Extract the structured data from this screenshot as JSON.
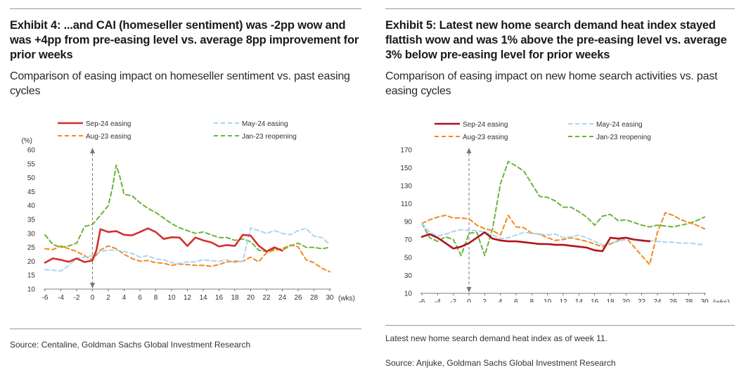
{
  "exhibits": [
    {
      "title": "Exhibit 4: ...and CAI (homeseller sentiment) was -2pp wow and was +4pp from pre-easing level vs. average 8pp improvement for prior weeks",
      "subtitle": "Comparison of easing impact on homeseller sentiment vs. past easing cycles",
      "note": "",
      "source": "Source: Centaline, Goldman Sachs Global Investment Research"
    },
    {
      "title": "Exhibit 5: Latest new home search demand heat index stayed flattish wow and was 1% above the pre-easing level vs. average 3% below pre-easing level for prior weeks",
      "subtitle": "Comparison of easing impact on new home search activities vs. past easing cycles",
      "note": "Latest new home search demand heat index as of week 11.",
      "source": "Source: Anjuke, Goldman Sachs Global Investment Research"
    }
  ],
  "chart_data": [
    {
      "type": "line",
      "title": "",
      "ylabel": "(%)",
      "xlabel": "(wks)",
      "ylim": [
        10,
        60
      ],
      "yticks": [
        10,
        15,
        20,
        25,
        30,
        35,
        40,
        45,
        50,
        55,
        60
      ],
      "xlim": [
        -6,
        30
      ],
      "xticks": [
        -6,
        -4,
        -2,
        0,
        2,
        4,
        6,
        8,
        10,
        12,
        14,
        16,
        18,
        20,
        22,
        24,
        26,
        28,
        30
      ],
      "series": [
        {
          "name": "Sep-24 easing",
          "color": "#d32f2f",
          "dash": "solid",
          "width": 2.6,
          "x": [
            -6,
            -5,
            -4,
            -3,
            -2,
            -1,
            0,
            0.5,
            1,
            2,
            3,
            4,
            5,
            6,
            7,
            8,
            9,
            10,
            11,
            12,
            13,
            14,
            15,
            16,
            17,
            18,
            19,
            20,
            21,
            22,
            23,
            24
          ],
          "y": [
            19.5,
            21,
            20.5,
            19.8,
            21,
            19.7,
            20.3,
            24,
            31.5,
            30.5,
            30.8,
            29.5,
            29.3,
            30.5,
            31.8,
            30.5,
            28,
            28.6,
            28.5,
            25.5,
            28.5,
            27.5,
            26.8,
            25.3,
            25.8,
            25.5,
            29.5,
            29.2,
            25.6,
            23.5,
            25,
            23.8
          ]
        },
        {
          "name": "May-24 easing",
          "color": "#a9d5f0",
          "dash": "6,4",
          "width": 2,
          "x": [
            -6,
            -5,
            -4,
            -3,
            -2,
            -1,
            0,
            1,
            2,
            3,
            4,
            5,
            6,
            7,
            8,
            9,
            10,
            11,
            12,
            13,
            14,
            15,
            16,
            17,
            18,
            19,
            20,
            21,
            22,
            23,
            24,
            25,
            26,
            27,
            28,
            29,
            30
          ],
          "y": [
            17,
            16.8,
            16.5,
            18.5,
            21,
            21.5,
            22,
            23.5,
            24,
            24,
            23.5,
            22.8,
            21.5,
            22,
            20.8,
            20.5,
            19.5,
            19.2,
            19.8,
            19.8,
            20.5,
            20.2,
            20,
            20.5,
            19.5,
            20,
            32,
            31,
            30,
            31,
            30,
            29.5,
            31,
            31.8,
            29,
            28.5,
            26
          ]
        },
        {
          "name": "Aug-23 easing",
          "color": "#f28a1c",
          "dash": "6,4",
          "width": 2,
          "x": [
            -6,
            -5,
            -4,
            -3,
            -2,
            -1,
            0,
            1,
            2,
            3,
            4,
            5,
            6,
            7,
            8,
            9,
            10,
            11,
            12,
            13,
            14,
            15,
            16,
            17,
            18,
            19,
            20,
            21,
            22,
            23,
            24,
            25,
            26,
            27,
            28,
            29,
            30
          ],
          "y": [
            24.5,
            24.2,
            25.5,
            24.5,
            23.5,
            22,
            20.5,
            24,
            25.5,
            24.5,
            22.5,
            21,
            20,
            20.3,
            19.5,
            19.3,
            18.5,
            19,
            18.8,
            18.5,
            18.5,
            18.2,
            18.8,
            19.8,
            20,
            20,
            21.5,
            19.8,
            23,
            24,
            24.5,
            25.8,
            25.2,
            20.5,
            19.5,
            17.5,
            16.2
          ]
        },
        {
          "name": "Jan-23 reopening",
          "color": "#6ab43c",
          "dash": "6,4",
          "width": 2,
          "x": [
            -6,
            -5,
            -4,
            -3,
            -2,
            -1,
            0,
            1,
            2,
            2.5,
            3,
            3.5,
            4,
            5,
            6,
            7,
            8,
            9,
            10,
            11,
            12,
            13,
            14,
            15,
            16,
            17,
            18,
            19,
            20,
            21,
            22,
            23,
            24,
            25,
            26,
            27,
            28,
            29,
            30
          ],
          "y": [
            29.5,
            26,
            25,
            25.5,
            26.5,
            32.5,
            33.2,
            36.5,
            40,
            46,
            54.5,
            50,
            44,
            43.5,
            41,
            39,
            37.5,
            35.5,
            33.5,
            32,
            31,
            30,
            30.5,
            29.5,
            28.5,
            28.5,
            27.5,
            28,
            27,
            24,
            23.5,
            24.5,
            24,
            25.5,
            26.5,
            25,
            25,
            24.5,
            25
          ]
        }
      ]
    },
    {
      "type": "line",
      "title": "",
      "ylabel": "",
      "xlabel": "(wks)",
      "ylim": [
        10,
        170
      ],
      "yticks": [
        10,
        30,
        50,
        70,
        90,
        110,
        130,
        150,
        170
      ],
      "xlim": [
        -6,
        30
      ],
      "xticks": [
        -6,
        -4,
        -2,
        0,
        2,
        4,
        6,
        8,
        10,
        12,
        14,
        16,
        18,
        20,
        22,
        24,
        26,
        28,
        30
      ],
      "series": [
        {
          "name": "Sep-24 easing",
          "color": "#b3121a",
          "dash": "solid",
          "width": 2.6,
          "x": [
            -6,
            -5,
            -4,
            -3,
            -2,
            -1,
            0,
            1,
            2,
            3,
            4,
            5,
            6,
            7,
            8,
            9,
            10,
            11,
            12,
            13,
            14,
            15,
            16,
            17,
            18,
            19,
            20,
            21,
            22,
            23
          ],
          "y": [
            73,
            76,
            72,
            66,
            60,
            62,
            66,
            72,
            78,
            71,
            69,
            68,
            68,
            67,
            66,
            65,
            65,
            64,
            64,
            63,
            62,
            61,
            58,
            57,
            72,
            71,
            72,
            70,
            69,
            68
          ]
        },
        {
          "name": "May-24 easing",
          "color": "#a9d5f0",
          "dash": "6,4",
          "width": 2,
          "x": [
            -6,
            -5,
            -4,
            -3,
            -2,
            -1,
            0,
            1,
            2,
            3,
            4,
            5,
            6,
            7,
            8,
            9,
            10,
            11,
            12,
            13,
            14,
            15,
            16,
            17,
            18,
            19,
            20,
            21,
            22,
            23,
            24,
            25,
            26,
            27,
            28,
            29,
            30
          ],
          "y": [
            88,
            78,
            74,
            76,
            79,
            81,
            80,
            80,
            78,
            75,
            71,
            72,
            75,
            78,
            77,
            76,
            75,
            76,
            72,
            73,
            75,
            72,
            68,
            64,
            66,
            68,
            70,
            70,
            68,
            69,
            68,
            67,
            67,
            66,
            66,
            65,
            64
          ]
        },
        {
          "name": "Aug-23 easing",
          "color": "#f28a1c",
          "dash": "6,4",
          "width": 2,
          "x": [
            -6,
            -5,
            -4,
            -3,
            -2,
            -1,
            0,
            1,
            2,
            3,
            4,
            5,
            6,
            7,
            8,
            9,
            10,
            11,
            12,
            13,
            14,
            15,
            16,
            17,
            18,
            19,
            20,
            21,
            22,
            23,
            24,
            25,
            26,
            27,
            28,
            29,
            30
          ],
          "y": [
            88,
            92,
            95,
            97,
            94,
            94,
            93,
            86,
            82,
            80,
            75,
            97,
            84,
            83,
            77,
            76,
            72,
            69,
            70,
            72,
            70,
            68,
            65,
            62,
            65,
            69,
            72,
            62,
            52,
            42,
            78,
            100,
            97,
            92,
            89,
            86,
            82
          ]
        },
        {
          "name": "Jan-23 reopening",
          "color": "#6ab43c",
          "dash": "6,4",
          "width": 2,
          "x": [
            -6,
            -5,
            -4,
            -3,
            -2,
            -1,
            0,
            1,
            2,
            3,
            4,
            5,
            6,
            7,
            8,
            9,
            10,
            11,
            12,
            13,
            14,
            15,
            16,
            17,
            18,
            19,
            20,
            21,
            22,
            23,
            24,
            25,
            26,
            27,
            28,
            29,
            30
          ],
          "y": [
            88,
            72,
            68,
            73,
            70,
            52,
            77,
            78,
            52,
            82,
            132,
            157,
            152,
            146,
            132,
            118,
            117,
            113,
            106,
            106,
            101,
            95,
            86,
            96,
            98,
            91,
            92,
            89,
            86,
            84,
            86,
            85,
            84,
            86,
            88,
            91,
            95
          ]
        }
      ]
    }
  ]
}
